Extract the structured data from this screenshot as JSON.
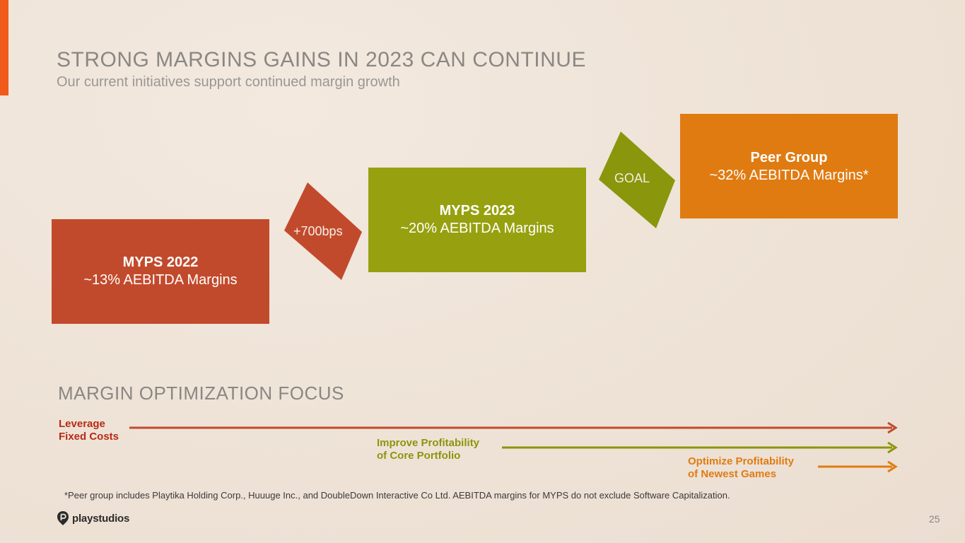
{
  "slide": {
    "title": "STRONG MARGINS GAINS IN 2023 CAN CONTINUE",
    "subtitle": "Our current initiatives support continued margin growth",
    "page_number": "25"
  },
  "steps": [
    {
      "title": "MYPS 2022",
      "subtitle": "~13% AEBITDA Margins",
      "color": "#c24a2c"
    },
    {
      "title": "MYPS 2023",
      "subtitle": "~20% AEBITDA Margins",
      "color": "#97a10f"
    },
    {
      "title": "Peer Group",
      "subtitle": "~32% AEBITDA Margins*",
      "color": "#e07b12"
    }
  ],
  "arrows": [
    {
      "label": "+700bps",
      "color": "#c24a2c"
    },
    {
      "label": "GOAL",
      "color": "#8a960c"
    }
  ],
  "focus": {
    "title": "MARGIN OPTIMIZATION FOCUS",
    "items": [
      {
        "label_line1": "Leverage",
        "label_line2": "Fixed Costs",
        "color": "#b82a14"
      },
      {
        "label_line1": "Improve Profitability",
        "label_line2": "of Core Portfolio",
        "color": "#8a960c"
      },
      {
        "label_line1": "Optimize Profitability",
        "label_line2": "of Newest Games",
        "color": "#e07b12"
      }
    ]
  },
  "footnote": "*Peer group includes Playtika Holding Corp., Huuuge Inc., and DoubleDown Interactive Co Ltd. AEBITDA margins for MYPS do not exclude Software Capitalization.",
  "logo": {
    "text": "playstudios",
    "icon": "playstudios-logo-icon"
  }
}
